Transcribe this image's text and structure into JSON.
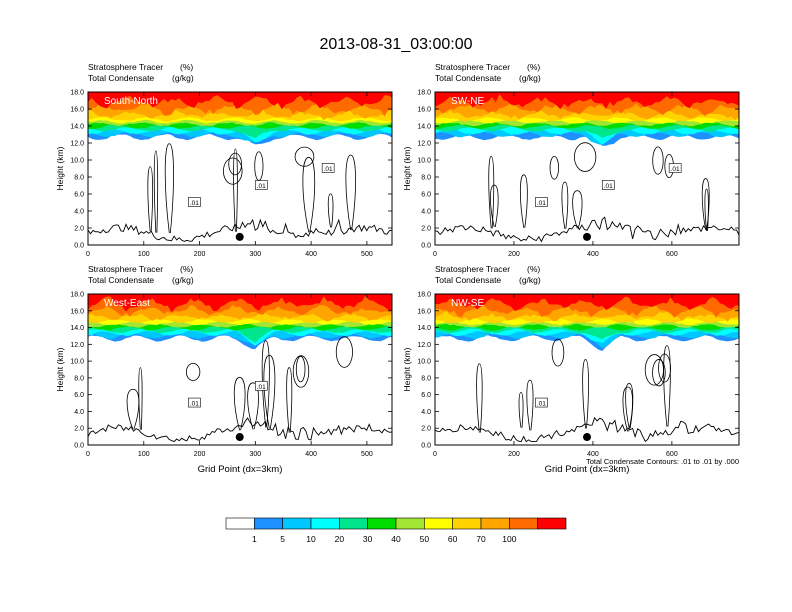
{
  "title": "2013-08-31_03:00:00",
  "colorbar": {
    "colors": [
      "#ffffff",
      "#1e90ff",
      "#00c8ff",
      "#00ffff",
      "#00e68c",
      "#00dc00",
      "#a0e632",
      "#ffff00",
      "#ffd200",
      "#ffa500",
      "#ff6a00",
      "#ff0000"
    ],
    "labels": [
      "1",
      "5",
      "10",
      "20",
      "30",
      "40",
      "50",
      "60",
      "70",
      "100"
    ]
  },
  "contour_note": "Total Condensate Contours: .01 to .01 by .000",
  "panel_header": {
    "line1_name": "Stratosphere Tracer",
    "line1_unit": "(%)",
    "line2_name": "Total Condensate",
    "line2_unit": "(g/kg)"
  },
  "axis": {
    "ylabel": "Height (km)",
    "xlabel": "Grid Point (dx=3km)",
    "yticks": [
      "0.0",
      "2.0",
      "4.0",
      "6.0",
      "8.0",
      "10.0",
      "12.0",
      "14.0",
      "16.0",
      "18.0"
    ]
  },
  "chart_data": [
    {
      "type": "heatmap",
      "name": "South-North",
      "xlim": [
        0,
        545
      ],
      "ylim": [
        0,
        18
      ],
      "xticks": [
        "0",
        "100",
        "200",
        "300",
        "400",
        "500"
      ],
      "xtick_values": [
        0,
        100,
        200,
        300,
        400,
        500
      ],
      "contour_labels": [
        ".01",
        ".01",
        ".01"
      ],
      "marker_x": 272,
      "show_xlabel": false
    },
    {
      "type": "heatmap",
      "name": "SW-NE",
      "xlim": [
        0,
        770
      ],
      "ylim": [
        0,
        18
      ],
      "xticks": [
        "0",
        "200",
        "400",
        "600"
      ],
      "xtick_values": [
        0,
        200,
        400,
        600
      ],
      "contour_labels": [
        ".01",
        ".01",
        ".01"
      ],
      "marker_x": 385,
      "show_xlabel": false
    },
    {
      "type": "heatmap",
      "name": "West-East",
      "xlim": [
        0,
        545
      ],
      "ylim": [
        0,
        18
      ],
      "xticks": [
        "0",
        "100",
        "200",
        "300",
        "400",
        "500"
      ],
      "xtick_values": [
        0,
        100,
        200,
        300,
        400,
        500
      ],
      "contour_labels": [
        ".01",
        ".01"
      ],
      "marker_x": 272,
      "show_xlabel": true
    },
    {
      "type": "heatmap",
      "name": "NW-SE",
      "xlim": [
        0,
        770
      ],
      "ylim": [
        0,
        18
      ],
      "xticks": [
        "0",
        "200",
        "400",
        "600"
      ],
      "xtick_values": [
        0,
        200,
        400,
        600
      ],
      "contour_labels": [
        ".01"
      ],
      "marker_x": 385,
      "show_xlabel": true
    }
  ]
}
